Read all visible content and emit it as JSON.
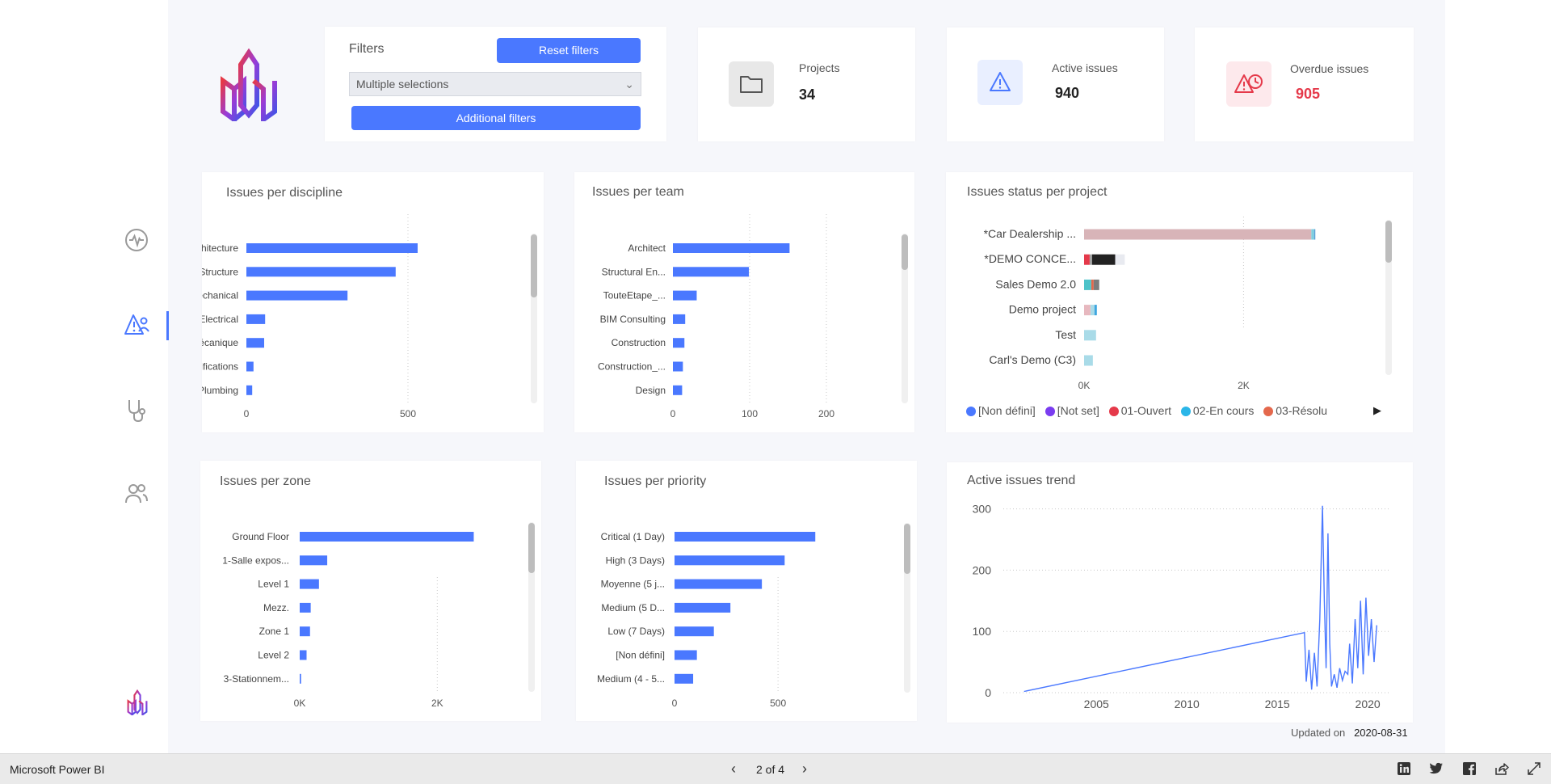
{
  "app": {
    "title": "Microsoft Power BI"
  },
  "pager": {
    "label": "2 of 4"
  },
  "colors": {
    "accent": "#4a78ff",
    "overdue": "#e5394a",
    "bar": "#4a78ff"
  },
  "filters": {
    "title": "Filters",
    "reset_label": "Reset filters",
    "select_value": "Multiple selections",
    "additional_label": "Additional filters"
  },
  "kpis": {
    "projects": {
      "label": "Projects",
      "value": "34"
    },
    "active": {
      "label": "Active issues",
      "value": "940"
    },
    "overdue": {
      "label": "Overdue issues",
      "value": "905"
    }
  },
  "footer": {
    "updated_label": "Updated on",
    "updated_date": "2020-08-31"
  },
  "status_legend": [
    {
      "label": "[Non défini]",
      "color": "#4a78ff"
    },
    {
      "label": "[Not set]",
      "color": "#7a3cf0"
    },
    {
      "label": "01-Ouvert",
      "color": "#e5394a"
    },
    {
      "label": "02-En cours",
      "color": "#2bb6e8"
    },
    {
      "label": "03-Résolu",
      "color": "#e4684c"
    }
  ],
  "chart_data": [
    {
      "id": "discipline",
      "type": "bar",
      "orientation": "horizontal",
      "title": "Issues per discipline",
      "categories": [
        "Architecture",
        "Structure",
        "Mechanical",
        "Electrical",
        "Mécanique",
        "Specifications",
        "Plumbing"
      ],
      "values": [
        530,
        462,
        313,
        58,
        55,
        22,
        18
      ],
      "xlim": [
        0,
        600
      ],
      "ticks": [
        0,
        500
      ],
      "tick_labels": [
        "0",
        "500"
      ]
    },
    {
      "id": "team",
      "type": "bar",
      "orientation": "horizontal",
      "title": "Issues per team",
      "categories": [
        "Architect",
        "Structural En...",
        "TouteEtape_...",
        "BIM Consulting",
        "Construction",
        "Construction_...",
        "Design"
      ],
      "values": [
        152,
        99,
        31,
        16,
        15,
        13,
        12
      ],
      "xlim": [
        0,
        220
      ],
      "ticks": [
        0,
        100,
        200
      ],
      "tick_labels": [
        "0",
        "100",
        "200"
      ]
    },
    {
      "id": "status_project",
      "type": "bar",
      "orientation": "horizontal",
      "stacked": true,
      "title": "Issues status per project",
      "categories": [
        "*Car Dealership ...",
        "*DEMO CONCE...",
        "Sales Demo 2.0",
        "Demo project",
        "Test",
        "Carl's Demo (C3)"
      ],
      "segments": [
        [
          {
            "value": 2850,
            "color": "#d8b4b8"
          },
          {
            "value": 35,
            "color": "#7ecfe0"
          },
          {
            "value": 15,
            "color": "#5aa0d6"
          }
        ],
        [
          {
            "value": 70,
            "color": "#e5394a"
          },
          {
            "value": 30,
            "color": "#a4a4a4"
          },
          {
            "value": 290,
            "color": "#222222"
          },
          {
            "value": 120,
            "color": "#e8eaf0"
          }
        ],
        [
          {
            "value": 90,
            "color": "#4dc3c9"
          },
          {
            "value": 30,
            "color": "#e4684c"
          },
          {
            "value": 70,
            "color": "#7c7c7c"
          }
        ],
        [
          {
            "value": 80,
            "color": "#e7b8bf"
          },
          {
            "value": 50,
            "color": "#a9dbe8"
          },
          {
            "value": 30,
            "color": "#3ea6e0"
          }
        ],
        [
          {
            "value": 150,
            "color": "#a9dbe8"
          }
        ],
        [
          {
            "value": 110,
            "color": "#a9dbe8"
          }
        ]
      ],
      "xlim": [
        0,
        3100
      ],
      "ticks": [
        0,
        2000
      ],
      "tick_labels": [
        "0K",
        "2K"
      ]
    },
    {
      "id": "zone",
      "type": "bar",
      "orientation": "horizontal",
      "title": "Issues per zone",
      "categories": [
        "Ground Floor",
        "1-Salle expos...",
        "Level 1",
        "Mezz.",
        "Zone 1",
        "Level 2",
        "3-Stationnem..."
      ],
      "values": [
        2530,
        400,
        280,
        160,
        150,
        100,
        20
      ],
      "xlim": [
        0,
        3100
      ],
      "ticks": [
        0,
        2000
      ],
      "tick_labels": [
        "0K",
        "2K"
      ]
    },
    {
      "id": "priority",
      "type": "bar",
      "orientation": "horizontal",
      "title": "Issues per priority",
      "categories": [
        "Critical (1 Day)",
        "High (3 Days)",
        "Moyenne (5 j...",
        "Medium (5 D...",
        "Low (7 Days)",
        "[Non défini]",
        "Medium (4 - 5..."
      ],
      "values": [
        680,
        532,
        422,
        270,
        190,
        108,
        90
      ],
      "xlim": [
        0,
        800
      ],
      "ticks": [
        0,
        500
      ],
      "tick_labels": [
        "0",
        "500"
      ]
    },
    {
      "id": "trend",
      "type": "line",
      "title": "Active issues trend",
      "xlim": [
        2000.3,
        2021.2
      ],
      "ylim": [
        0,
        310
      ],
      "xticks": [
        2005,
        2010,
        2015,
        2020
      ],
      "yticks": [
        0,
        100,
        200,
        300
      ],
      "x": [
        2001,
        2016.5,
        2016.6,
        2016.75,
        2016.9,
        2017.05,
        2017.2,
        2017.35,
        2017.5,
        2017.6,
        2017.7,
        2017.8,
        2017.9,
        2018.0,
        2018.15,
        2018.3,
        2018.45,
        2018.6,
        2018.75,
        2018.9,
        2019.0,
        2019.15,
        2019.3,
        2019.45,
        2019.6,
        2019.75,
        2019.9,
        2020.05,
        2020.2,
        2020.35,
        2020.5
      ],
      "y": [
        2,
        98,
        18,
        70,
        5,
        65,
        10,
        120,
        305,
        150,
        40,
        260,
        80,
        10,
        30,
        8,
        40,
        20,
        35,
        30,
        80,
        15,
        120,
        40,
        150,
        30,
        155,
        60,
        120,
        50,
        110
      ]
    }
  ]
}
